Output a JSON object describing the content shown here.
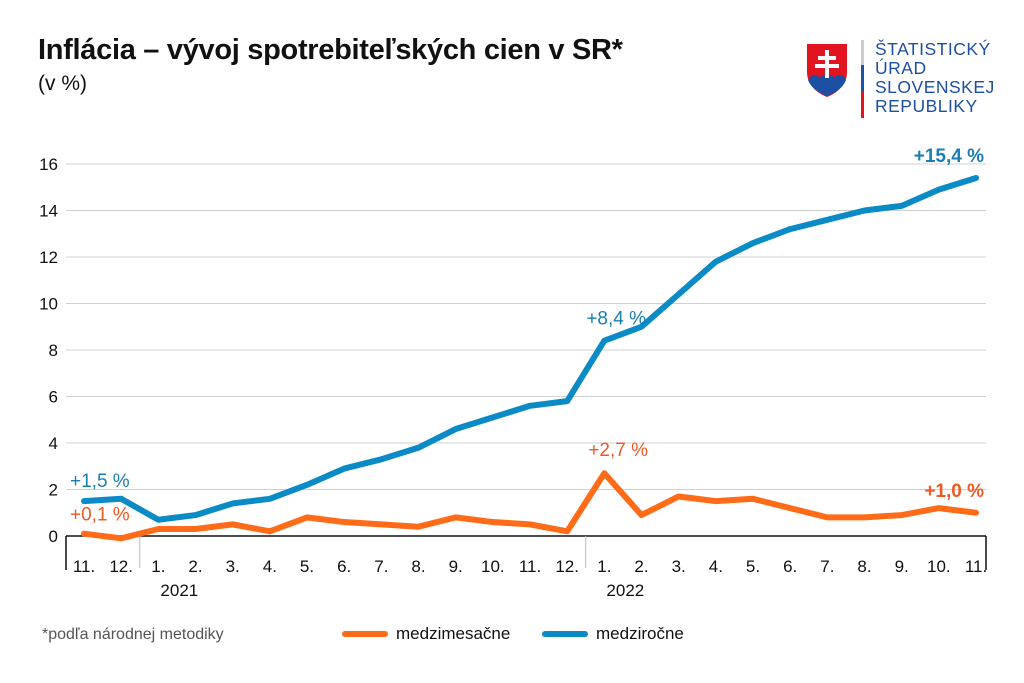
{
  "header": {
    "title": "Inflácia – vývoj spotrebiteľských cien v SR*",
    "subtitle": "(v %)"
  },
  "logo": {
    "lines": [
      "ŠTATISTICKÝ",
      "ÚRAD",
      "SLOVENSKEJ",
      "REPUBLIKY"
    ],
    "icon": "slovak-coat-of-arms-icon"
  },
  "footnote": "*podľa národnej metodiky",
  "colors": {
    "orange": "#ff6b17",
    "blue": "#0a8bc6",
    "orange_label": "#ee5a24",
    "blue_label": "#1a7db4"
  },
  "chart_data": {
    "type": "line",
    "title": "Inflácia – vývoj spotrebiteľských cien v SR*",
    "ylabel": "(v %)",
    "ylim": [
      0,
      16
    ],
    "yticks": [
      "0",
      "2",
      "4",
      "6",
      "8",
      "10",
      "12",
      "14",
      "16"
    ],
    "grid": true,
    "categories": [
      "11.",
      "12.",
      "1.",
      "2.",
      "3.",
      "4.",
      "5.",
      "6.",
      "7.",
      "8.",
      "9.",
      "10.",
      "11.",
      "12.",
      "1.",
      "2.",
      "3.",
      "4.",
      "5.",
      "6.",
      "7.",
      "8.",
      "9.",
      "10.",
      "11."
    ],
    "year_labels": [
      {
        "label": "2021",
        "index": 2
      },
      {
        "label": "2022",
        "index": 14
      }
    ],
    "legend_placement": "bottom",
    "series": [
      {
        "name": "medzimesačne",
        "color": "#ff6b17",
        "values": [
          0.1,
          -0.1,
          0.3,
          0.3,
          0.5,
          0.2,
          0.8,
          0.6,
          0.5,
          0.4,
          0.8,
          0.6,
          0.5,
          0.2,
          2.7,
          0.9,
          1.7,
          1.5,
          1.6,
          1.2,
          0.8,
          0.8,
          0.9,
          1.2,
          1.0
        ]
      },
      {
        "name": "medziročne",
        "color": "#0a8bc6",
        "values": [
          1.5,
          1.6,
          0.7,
          0.9,
          1.4,
          1.6,
          2.2,
          2.9,
          3.3,
          3.8,
          4.6,
          5.1,
          5.6,
          5.8,
          8.4,
          9.0,
          10.4,
          11.8,
          12.6,
          13.2,
          13.6,
          14.0,
          14.2,
          14.9,
          15.4
        ]
      }
    ],
    "annotations": [
      {
        "text": "+1,5 %",
        "series": 1,
        "index": 0,
        "bold": false
      },
      {
        "text": "+8,4 %",
        "series": 1,
        "index": 14,
        "bold": false
      },
      {
        "text": "+15,4 %",
        "series": 1,
        "index": 24,
        "bold": true
      },
      {
        "text": "+0,1 %",
        "series": 0,
        "index": 0,
        "bold": false
      },
      {
        "text": "+2,7 %",
        "series": 0,
        "index": 14,
        "bold": false
      },
      {
        "text": "+1,0 %",
        "series": 0,
        "index": 24,
        "bold": true
      }
    ]
  }
}
